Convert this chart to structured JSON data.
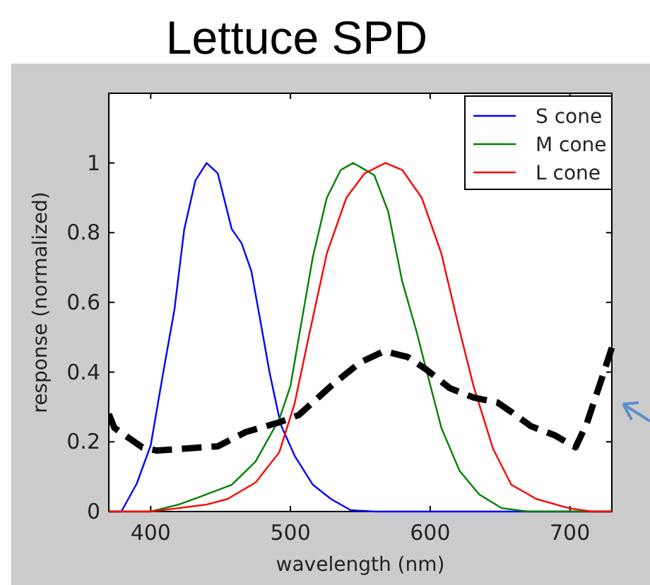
{
  "chart_data": {
    "type": "line",
    "title": "Lettuce SPD",
    "xlabel": "wavelength (nm)",
    "ylabel": "response (normalized)",
    "xlim": [
      370,
      730
    ],
    "ylim": [
      0,
      1.2
    ],
    "xticks": [
      400,
      500,
      600,
      700
    ],
    "yticks": [
      0,
      0.2,
      0.4,
      0.6,
      0.8,
      1
    ],
    "grid": false,
    "legend": "top right",
    "series": [
      {
        "name": "S cone",
        "color": "#0000ff",
        "x": [
          370,
          379,
          390,
          400,
          409,
          417,
          424,
          432,
          440,
          448,
          458,
          465,
          472,
          477,
          485,
          493,
          503,
          516,
          529,
          543,
          560,
          730
        ],
        "values": [
          0,
          0,
          0.08,
          0.19,
          0.4,
          0.58,
          0.81,
          0.95,
          1,
          0.97,
          0.81,
          0.77,
          0.69,
          0.58,
          0.4,
          0.25,
          0.16,
          0.077,
          0.036,
          0.004,
          0,
          0
        ]
      },
      {
        "name": "M cone",
        "color": "#008000",
        "x": [
          370,
          400,
          420,
          435,
          458,
          475,
          492,
          500,
          506,
          516,
          526,
          536,
          545,
          560,
          570,
          580,
          590,
          597,
          608,
          621,
          635,
          651,
          670,
          730
        ],
        "values": [
          0,
          0,
          0.02,
          0.042,
          0.077,
          0.143,
          0.265,
          0.36,
          0.5,
          0.73,
          0.9,
          0.98,
          1,
          0.965,
          0.86,
          0.66,
          0.52,
          0.41,
          0.24,
          0.117,
          0.049,
          0.01,
          0,
          0
        ]
      },
      {
        "name": "L cone",
        "color": "#ff0000",
        "x": [
          370,
          400,
          420,
          440,
          455,
          475,
          492,
          503,
          513,
          526,
          540,
          553,
          568,
          580,
          594,
          608,
          621,
          631,
          645,
          658,
          676,
          699,
          715,
          730
        ],
        "values": [
          0,
          0,
          0.01,
          0.02,
          0.036,
          0.083,
          0.17,
          0.31,
          0.5,
          0.74,
          0.9,
          0.97,
          1,
          0.98,
          0.9,
          0.74,
          0.52,
          0.36,
          0.18,
          0.077,
          0.036,
          0.01,
          0,
          0
        ]
      },
      {
        "color": "#000000",
        "line_style": "dashed",
        "x": [
          370,
          374,
          394,
          404,
          448,
          468,
          492,
          506,
          529,
          550,
          567,
          584,
          597,
          614,
          631,
          648,
          658,
          672,
          689,
          704,
          712,
          721,
          730
        ],
        "values": [
          0.28,
          0.24,
          0.184,
          0.175,
          0.187,
          0.228,
          0.256,
          0.277,
          0.36,
          0.428,
          0.46,
          0.443,
          0.408,
          0.354,
          0.327,
          0.313,
          0.286,
          0.245,
          0.219,
          0.184,
          0.252,
          0.36,
          0.47
        ]
      }
    ]
  }
}
